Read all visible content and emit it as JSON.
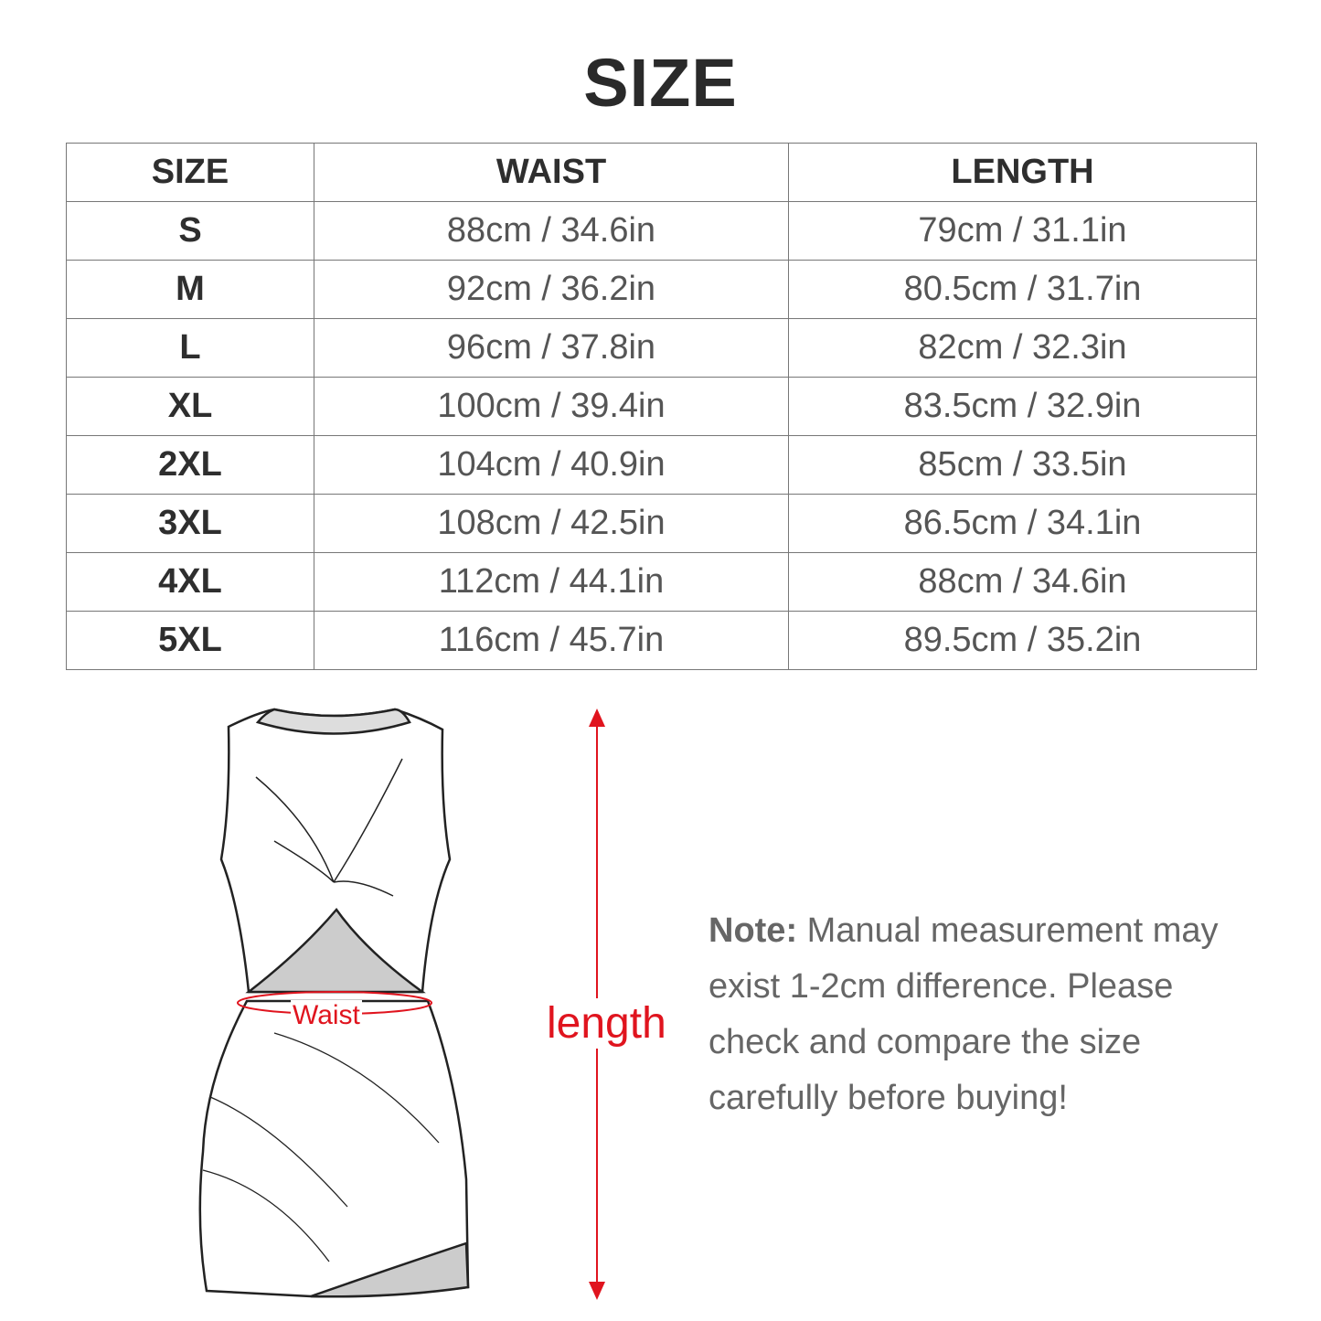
{
  "title": "SIZE",
  "table": {
    "headers": [
      "SIZE",
      "WAIST",
      "LENGTH"
    ],
    "rows": [
      [
        "S",
        "88cm / 34.6in",
        "79cm / 31.1in"
      ],
      [
        "M",
        "92cm / 36.2in",
        "80.5cm / 31.7in"
      ],
      [
        "L",
        "96cm / 37.8in",
        "82cm / 32.3in"
      ],
      [
        "XL",
        "100cm / 39.4in",
        "83.5cm / 32.9in"
      ],
      [
        "2XL",
        "104cm / 40.9in",
        "85cm / 33.5in"
      ],
      [
        "3XL",
        "108cm / 42.5in",
        "86.5cm / 34.1in"
      ],
      [
        "4XL",
        "112cm / 44.1in",
        "88cm / 34.6in"
      ],
      [
        "5XL",
        "116cm / 45.7in",
        "89.5cm / 35.2in"
      ]
    ]
  },
  "diagram": {
    "waist_label": "Waist",
    "length_label": "length",
    "accent_color": "#e0141e"
  },
  "note": {
    "label": "Note:",
    "text": " Manual measurement may exist 1-2cm difference. Please check and compare the size carefully before buying!"
  }
}
